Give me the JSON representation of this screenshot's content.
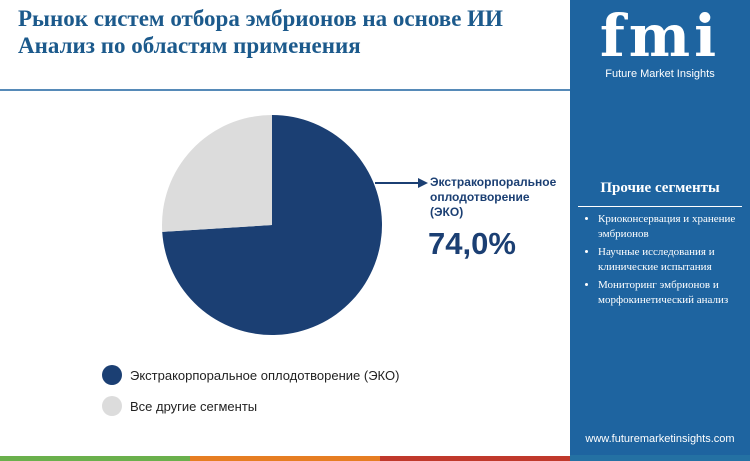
{
  "chart_data": {
    "type": "pie",
    "title": "Рынок систем отбора эмбрионов на основе ИИ",
    "subtitle": "Анализ по областям применения",
    "categories": [
      "Экстракорпоральное оплодотворение (ЭКО)",
      "Все другие сегменты"
    ],
    "values": [
      74.0,
      26
    ],
    "value_labels": [
      "74,0%",
      null
    ],
    "colors": [
      "#1b3f73",
      "#dcdcdc"
    ],
    "callout": [
      "Экстракорпоральное",
      "оплодотворение",
      "(ЭКО)"
    ]
  },
  "brand": {
    "logo": "fmi",
    "name": "Future Market Insights",
    "website": "www.futuremarketinsights.com"
  },
  "sidebar": {
    "heading": "Прочие сегменты",
    "items": [
      "Криоконсервация и хранение эмбрионов",
      "Научные исследования и клинические испытания",
      "Мониторинг эмбрионов и морфокинетический анализ"
    ]
  }
}
